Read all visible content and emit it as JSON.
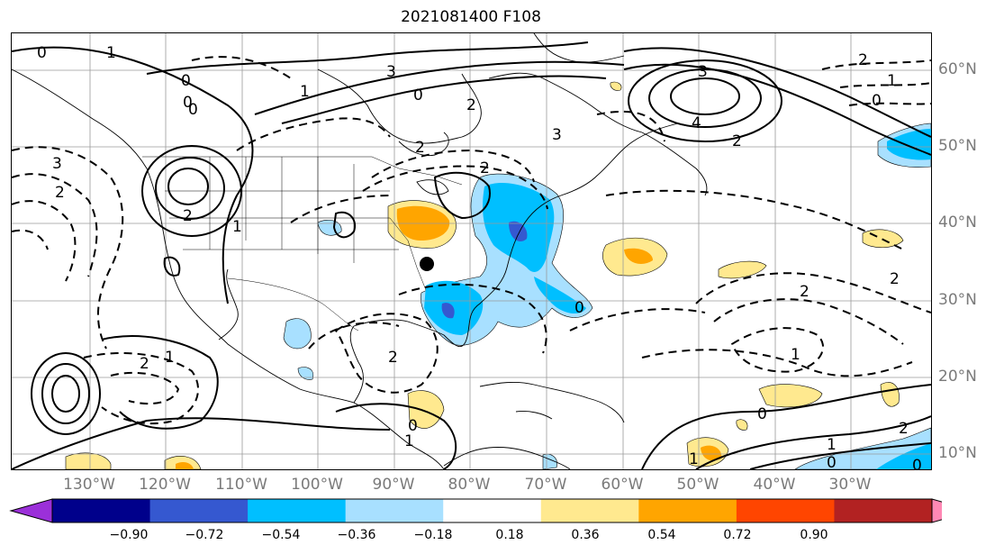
{
  "title": "2021081400 F108",
  "lon_labels": [
    "130°W",
    "120°W",
    "110°W",
    "100°W",
    "90°W",
    "80°W",
    "70°W",
    "60°W",
    "50°W",
    "40°W",
    "30°W"
  ],
  "lat_labels": [
    "60°N",
    "50°N",
    "40°N",
    "30°N",
    "20°N",
    "10°N"
  ],
  "colorbar": {
    "ticks": [
      "−0.90",
      "−0.72",
      "−0.54",
      "−0.36",
      "−0.18",
      "0.18",
      "0.36",
      "0.54",
      "0.72",
      "0.90"
    ],
    "colors": [
      "#9b30d9",
      "#00008b",
      "#3558d0",
      "#00bfff",
      "#a8e0ff",
      "#ffffff",
      "#ffe98f",
      "#ffa500",
      "#ff4500",
      "#b22222",
      "#ff88b4"
    ]
  },
  "contour_labels": [
    "0",
    "1",
    "0",
    "3",
    "0",
    "1",
    "2",
    "3",
    "2",
    "2",
    "3",
    "4",
    "2",
    "0",
    "1",
    "2",
    "3",
    "2",
    "0",
    "2",
    "1",
    "2",
    "1",
    "0",
    "1",
    "0",
    "0",
    "2",
    "2",
    "1",
    "1",
    "2",
    "0",
    "1",
    "0",
    "2",
    "0"
  ],
  "marker": {
    "type": "point",
    "icon": "black-dot"
  }
}
